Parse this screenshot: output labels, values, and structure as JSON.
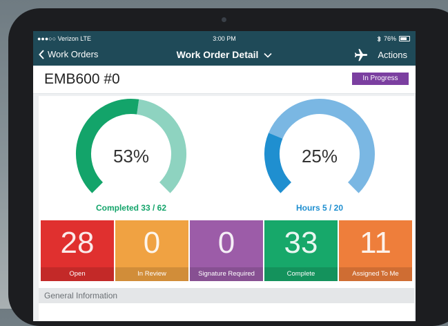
{
  "status_bar": {
    "carrier": "●●●○○ Verizon  LTE",
    "time": "3:00 PM",
    "battery": "76%"
  },
  "nav": {
    "back_label": "Work Orders",
    "title": "Work Order Detail",
    "actions_label": "Actions",
    "icons": [
      "chevron-left-icon",
      "chevron-down-icon",
      "airplane-icon",
      "bluetooth-icon",
      "battery-icon"
    ]
  },
  "work_order": {
    "title": "EMB600 #0",
    "status": "In Progress",
    "status_color": "#7b3fa0"
  },
  "gauges": [
    {
      "percent_label": "53%",
      "value": 0.53,
      "label": "Completed 33 / 62",
      "color_main": "#13a46a",
      "color_rest": "#8ed3c0"
    },
    {
      "percent_label": "25%",
      "value": 0.25,
      "label": "Hours 5 / 20",
      "color_main": "#1f8fd0",
      "color_rest": "#7ab7e3"
    }
  ],
  "tiles": [
    {
      "count": "28",
      "label": "Open",
      "color": "#e0302f"
    },
    {
      "count": "0",
      "label": "In Review",
      "color": "#f0a242"
    },
    {
      "count": "0",
      "label": "Signature Required",
      "color": "#9c5ca8"
    },
    {
      "count": "33",
      "label": "Complete",
      "color": "#17a86a"
    },
    {
      "count": "11",
      "label": "Assigned To Me",
      "color": "#ee7e3b"
    }
  ],
  "section": {
    "title": "General Information"
  }
}
